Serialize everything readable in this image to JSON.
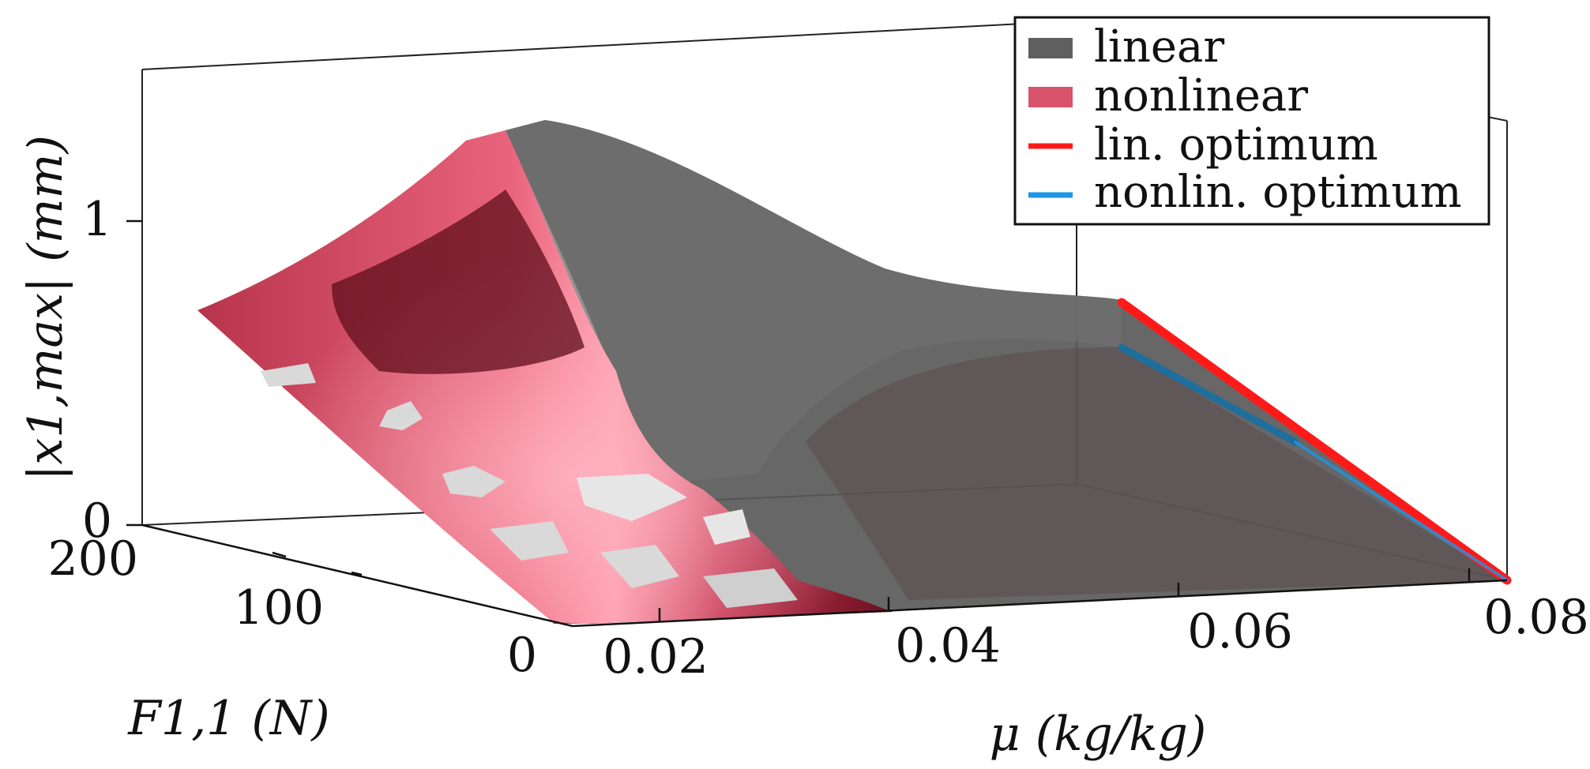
{
  "chart_data": {
    "type": "surface3d",
    "xlabel": "μ (kg/kg)",
    "ylabel": "F1,1 (N)",
    "zlabel": "|x1,max| (mm)",
    "x_ticks": [
      "0.02",
      "0.04",
      "0.06",
      "0.08"
    ],
    "y_ticks": [
      "0",
      "100",
      "200"
    ],
    "z_ticks": [
      "0",
      "1"
    ],
    "xlim": [
      0.012,
      0.08
    ],
    "ylim": [
      0,
      200
    ],
    "zlim": [
      0,
      1.5
    ],
    "legend": {
      "position": "top-right",
      "entries": [
        {
          "label": "linear",
          "color": "#5f5f5f",
          "kind": "patch"
        },
        {
          "label": "nonlinear",
          "color": "#d9536a",
          "kind": "patch"
        },
        {
          "label": "lin. optimum",
          "color": "#ff1a1a",
          "kind": "line"
        },
        {
          "label": "nonlin. optimum",
          "color": "#1e96e6",
          "kind": "line"
        }
      ]
    },
    "series": [
      {
        "name": "lin. optimum",
        "points": [
          {
            "x": 0.08,
            "y": 0,
            "z": 0.0
          },
          {
            "x": 0.08,
            "y": 200,
            "z": 0.74
          }
        ]
      },
      {
        "name": "nonlin. optimum",
        "points": [
          {
            "x": 0.08,
            "y": 0,
            "z": 0.0
          },
          {
            "x": 0.08,
            "y": 200,
            "z": 0.6
          }
        ]
      }
    ]
  }
}
